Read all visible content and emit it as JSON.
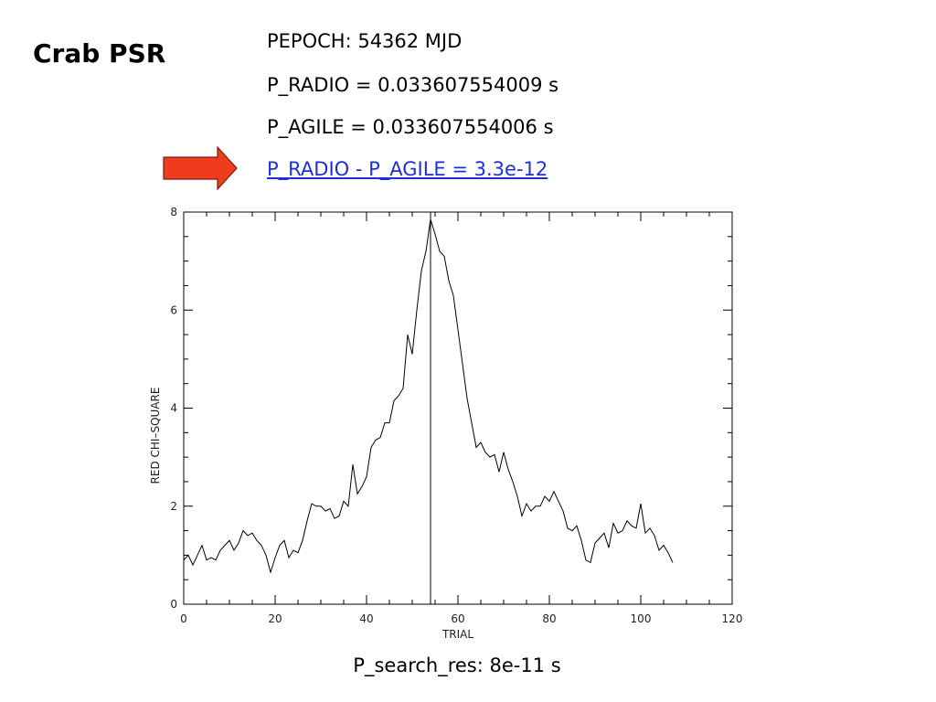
{
  "slide": {
    "title": "Crab PSR",
    "params": [
      "PEPOCH: 54362 MJD",
      "P_RADIO = 0.033607554009 s",
      "P_AGILE =  0.033607554006 s"
    ],
    "highlight": "P_RADIO - P_AGILE = 3.3e-12",
    "highlight_color": "#1f2fd6",
    "arrow_color": "#f03c1e",
    "arrow_icon": "right-arrow-icon",
    "caption": "P_search_res: 8e-11 s"
  },
  "chart_data": {
    "type": "line",
    "title": "",
    "xlabel": "TRIAL",
    "ylabel": "RED CHI–SQUARE",
    "xlim": [
      0,
      120
    ],
    "ylim": [
      0,
      8
    ],
    "xticks": [
      "0",
      "20",
      "40",
      "60",
      "80",
      "100",
      "120"
    ],
    "yticks": [
      "0",
      "2",
      "4",
      "6",
      "8"
    ],
    "vline_x": 54,
    "series": [
      {
        "name": "",
        "x": [
          0,
          1,
          2,
          3,
          4,
          5,
          6,
          7,
          8,
          9,
          10,
          11,
          12,
          13,
          14,
          15,
          16,
          17,
          18,
          19,
          20,
          21,
          22,
          23,
          24,
          25,
          26,
          27,
          28,
          29,
          30,
          31,
          32,
          33,
          34,
          35,
          36,
          37,
          38,
          39,
          40,
          41,
          42,
          43,
          44,
          45,
          46,
          47,
          48,
          49,
          50,
          51,
          52,
          53,
          54,
          55,
          56,
          57,
          58,
          59,
          60,
          61,
          62,
          63,
          64,
          65,
          66,
          67,
          68,
          69,
          70,
          71,
          72,
          73,
          74,
          75,
          76,
          77,
          78,
          79,
          80,
          81,
          82,
          83,
          84,
          85,
          86,
          87,
          88,
          89,
          90,
          91,
          92,
          93,
          94,
          95,
          96,
          97,
          98,
          99,
          100,
          101,
          102,
          103,
          104,
          105,
          106,
          107
        ],
        "y": [
          0.9,
          1.0,
          0.8,
          1.0,
          1.2,
          0.9,
          0.95,
          0.9,
          1.1,
          1.2,
          1.3,
          1.1,
          1.25,
          1.5,
          1.4,
          1.45,
          1.3,
          1.2,
          1.0,
          0.65,
          0.95,
          1.2,
          1.3,
          0.95,
          1.1,
          1.05,
          1.3,
          1.7,
          2.05,
          2.0,
          2.0,
          1.9,
          1.95,
          1.75,
          1.8,
          2.1,
          2.0,
          2.85,
          2.25,
          2.4,
          2.6,
          3.2,
          3.35,
          3.4,
          3.7,
          3.7,
          4.15,
          4.25,
          4.4,
          5.5,
          5.1,
          6.0,
          6.8,
          7.2,
          7.85,
          7.55,
          7.2,
          7.1,
          6.6,
          6.3,
          5.6,
          4.9,
          4.2,
          3.7,
          3.2,
          3.3,
          3.1,
          3.0,
          3.05,
          2.7,
          3.1,
          2.75,
          2.5,
          2.2,
          1.8,
          2.05,
          1.9,
          2.0,
          2.0,
          2.2,
          2.1,
          2.3,
          2.1,
          1.9,
          1.55,
          1.5,
          1.6,
          1.3,
          0.9,
          0.85,
          1.25,
          1.35,
          1.45,
          1.15,
          1.65,
          1.45,
          1.5,
          1.7,
          1.6,
          1.55,
          2.05,
          1.45,
          1.55,
          1.4,
          1.1,
          1.2,
          1.05,
          0.85
        ]
      }
    ]
  }
}
